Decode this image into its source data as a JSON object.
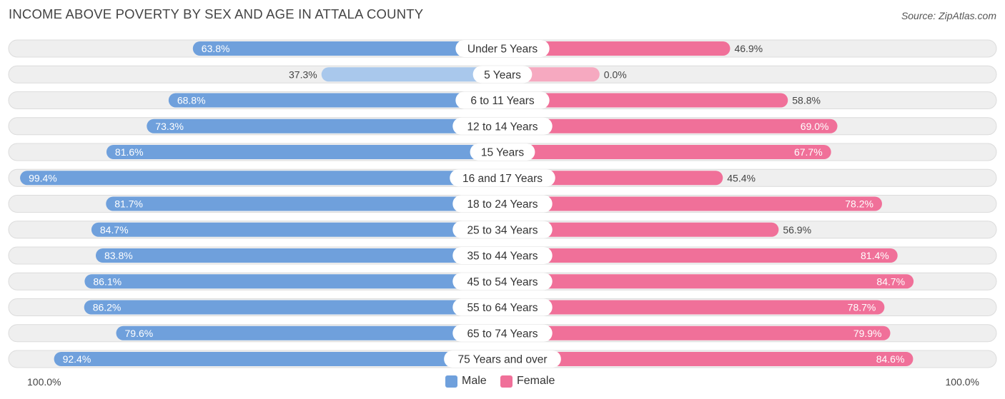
{
  "title": "INCOME ABOVE POVERTY BY SEX AND AGE IN ATTALA COUNTY",
  "source": "Source: ZipAtlas.com",
  "colors": {
    "male": "#6fa0dc",
    "male_light": "#a9c8ec",
    "female": "#f07099",
    "female_light": "#f6a9c0",
    "row_bg": "#efefef",
    "row_border": "#dcdcdc"
  },
  "axis": {
    "left_label": "100.0%",
    "right_label": "100.0%"
  },
  "legend": {
    "male": "Male",
    "female": "Female"
  },
  "chart_data": {
    "type": "bar",
    "orientation": "horizontal-diverging",
    "title": "INCOME ABOVE POVERTY BY SEX AND AGE IN ATTALA COUNTY",
    "xlim": [
      -100,
      100
    ],
    "categories": [
      "Under 5 Years",
      "5 Years",
      "6 to 11 Years",
      "12 to 14 Years",
      "15 Years",
      "16 and 17 Years",
      "18 to 24 Years",
      "25 to 34 Years",
      "35 to 44 Years",
      "45 to 54 Years",
      "55 to 64 Years",
      "65 to 74 Years",
      "75 Years and over"
    ],
    "series": [
      {
        "name": "Male",
        "values": [
          63.8,
          37.3,
          68.8,
          73.3,
          81.6,
          99.4,
          81.7,
          84.7,
          83.8,
          86.1,
          86.2,
          79.6,
          92.4
        ],
        "labels": [
          "63.8%",
          "37.3%",
          "68.8%",
          "73.3%",
          "81.6%",
          "99.4%",
          "81.7%",
          "84.7%",
          "83.8%",
          "86.1%",
          "86.2%",
          "79.6%",
          "92.4%"
        ]
      },
      {
        "name": "Female",
        "values": [
          46.9,
          0.0,
          58.8,
          69.0,
          67.7,
          45.4,
          78.2,
          56.9,
          81.4,
          84.7,
          78.7,
          79.9,
          84.6
        ],
        "labels": [
          "46.9%",
          "0.0%",
          "58.8%",
          "69.0%",
          "67.7%",
          "45.4%",
          "78.2%",
          "56.9%",
          "81.4%",
          "84.7%",
          "78.7%",
          "79.9%",
          "84.6%"
        ]
      }
    ]
  }
}
